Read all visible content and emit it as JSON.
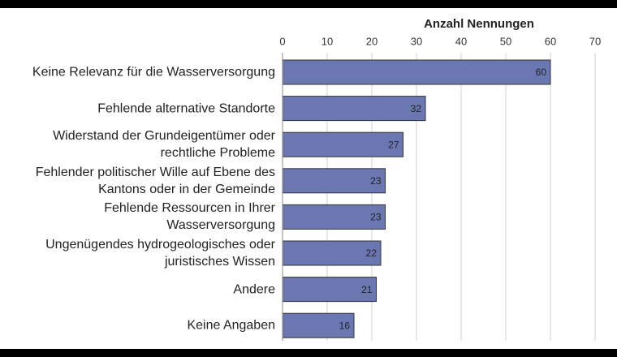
{
  "chart_data": {
    "type": "bar",
    "orientation": "horizontal",
    "x_axis_label": "Anzahl Nennungen",
    "categories": [
      "Keine Relevanz für die Wasserversorgung",
      "Fehlende alternative Standorte",
      "Widerstand der Grundeigentümer oder\nrechtliche Probleme",
      "Fehlender politischer Wille auf Ebene des\nKantons oder in der Gemeinde",
      "Fehlende Ressourcen in Ihrer\nWasserversorgung",
      "Ungenügendes hydrogeologisches oder\njuristisches Wissen",
      "Andere",
      "Keine Angaben"
    ],
    "values": [
      60,
      32,
      27,
      23,
      23,
      22,
      21,
      16
    ],
    "color": "#6b77b0",
    "xlim": [
      0,
      70
    ],
    "xticks": [
      0,
      10,
      20,
      30,
      40,
      50,
      60,
      70
    ],
    "grid": true
  }
}
